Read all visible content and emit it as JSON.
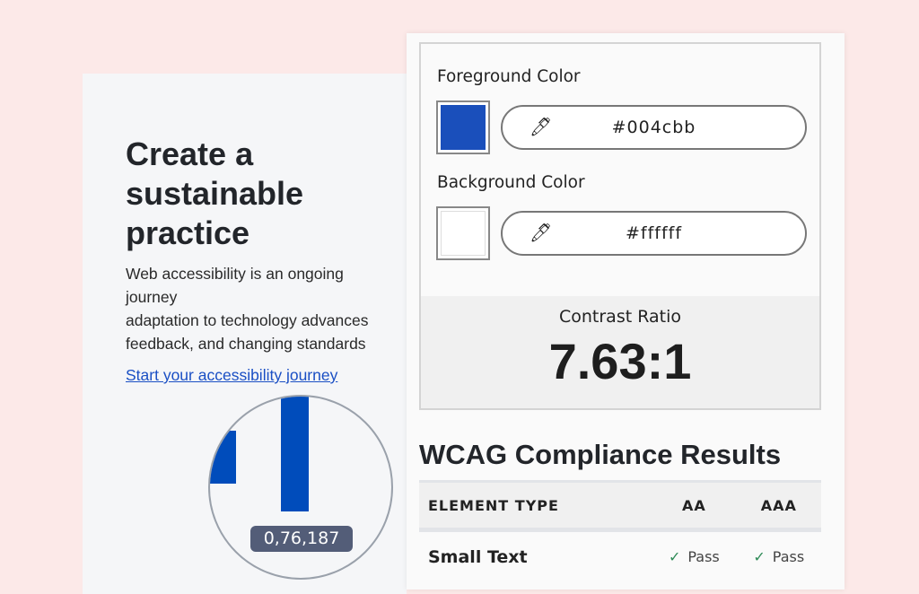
{
  "article": {
    "heading": "Create a sustainable practice",
    "para_lines": [
      "Web accessibility is an ongoing journey",
      "adaptation to technology advances",
      "feedback, and changing standards"
    ],
    "link": "Start your accessibility journey"
  },
  "magnifier": {
    "tooltip": "0,76,187",
    "bar_color": "#004cbb"
  },
  "checker": {
    "fg_label": "Foreground Color",
    "fg_value": "#004cbb",
    "bg_label": "Background Color",
    "bg_value": "#ffffff",
    "contrast_label": "Contrast Ratio",
    "contrast_value": "7.63:1"
  },
  "wcag": {
    "title": "WCAG Compliance Results",
    "headers": [
      "ELEMENT TYPE",
      "AA",
      "AAA"
    ],
    "rows": [
      {
        "type": "Small Text",
        "aa": "Pass",
        "aaa": "Pass"
      }
    ]
  }
}
